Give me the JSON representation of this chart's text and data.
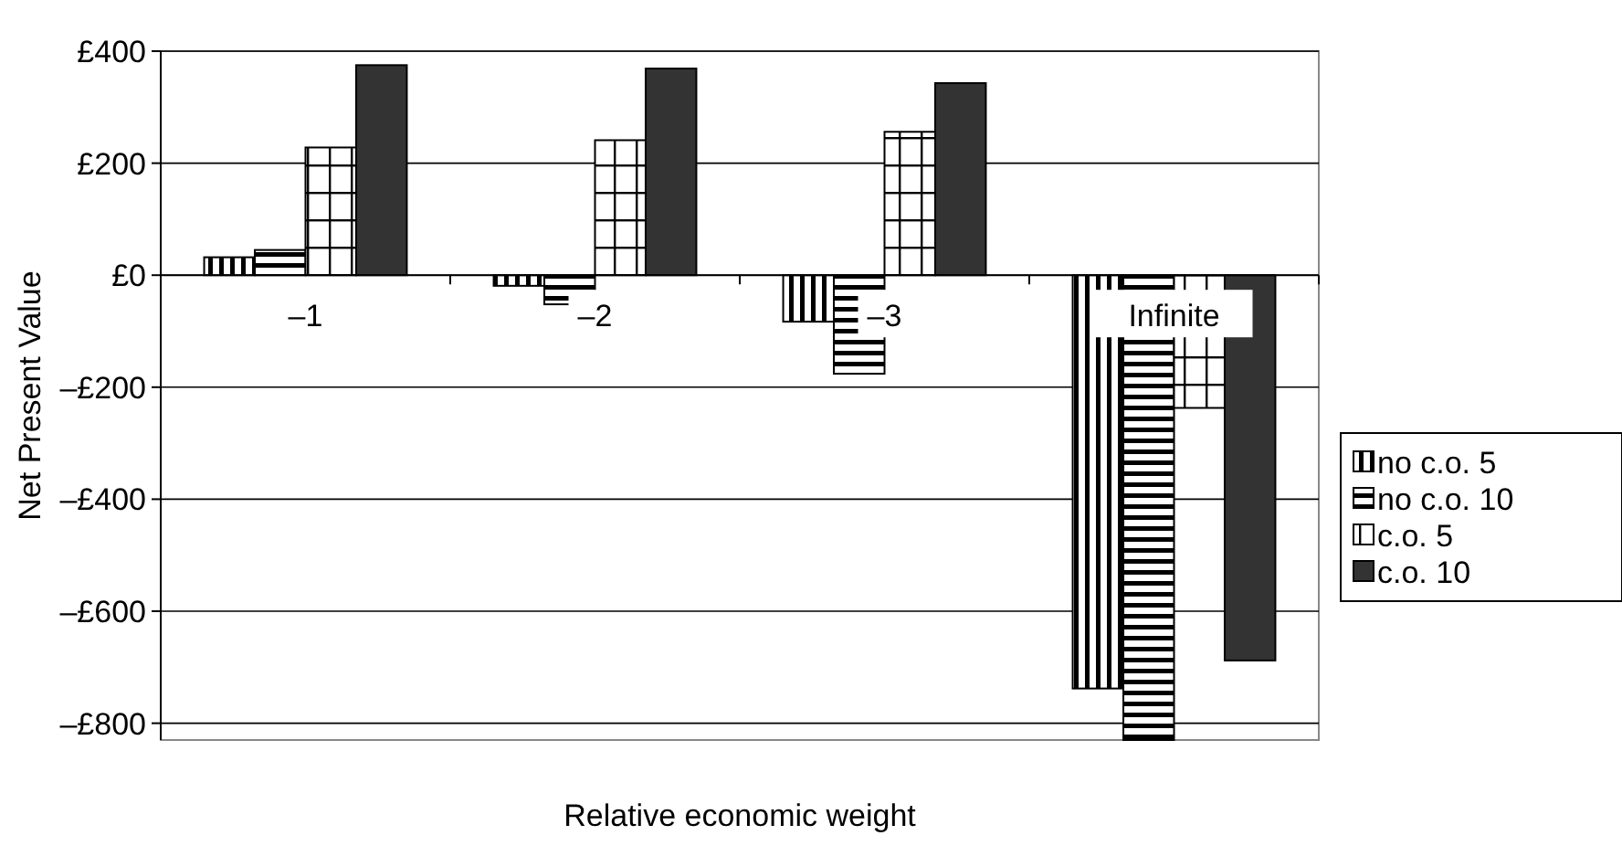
{
  "chart_data": {
    "type": "bar",
    "xlabel": "Relative economic weight",
    "ylabel": "Net Present Value",
    "categories": [
      "–1",
      "–2",
      "–3",
      "Infinite"
    ],
    "series": [
      {
        "name": "no c.o. 5",
        "color": "#000000",
        "values": [
          32,
          -19,
          -83,
          -738
        ]
      },
      {
        "name": "no c.o. 10",
        "color": "#000000",
        "values": [
          45,
          -52,
          -176,
          -830
        ]
      },
      {
        "name": "c.o. 5",
        "color": "#000000",
        "values": [
          228,
          241,
          256,
          -237
        ]
      },
      {
        "name": "c.o. 10",
        "color": "#333333",
        "values": [
          375,
          369,
          343,
          -688
        ]
      }
    ],
    "ylim": [
      -830,
      400
    ],
    "yticks": [
      {
        "value": 400,
        "label": "£400"
      },
      {
        "value": 200,
        "label": "£200"
      },
      {
        "value": 0,
        "label": "£0"
      },
      {
        "value": -200,
        "label": "–£200"
      },
      {
        "value": -400,
        "label": "–£400"
      },
      {
        "value": -600,
        "label": "–£600"
      },
      {
        "value": -800,
        "label": "–£800"
      }
    ],
    "grid": "y",
    "legend": "right"
  }
}
